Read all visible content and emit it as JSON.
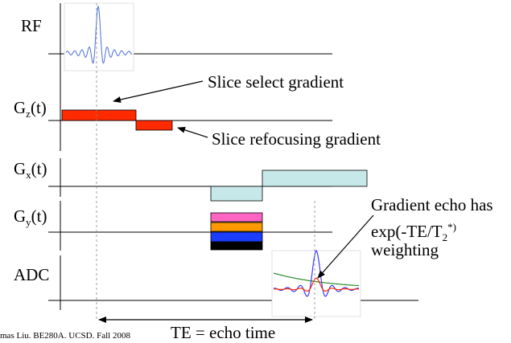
{
  "rows": {
    "rf": {
      "label": "RF"
    },
    "gz": {
      "label_main": "G",
      "label_sub": "z",
      "label_suffix": "(t)"
    },
    "gx": {
      "label_main": "G",
      "label_sub": "x",
      "label_suffix": "(t)"
    },
    "gy": {
      "label_main": "G",
      "label_sub": "y",
      "label_suffix": "(t)"
    },
    "adc": {
      "label": "ADC"
    }
  },
  "annotations": {
    "slice_select": "Slice select gradient",
    "slice_refocus": "Slice refocusing gradient",
    "gradient_echo_line1": "Gradient echo has",
    "gradient_echo_line2_pre": "exp(-TE/T",
    "gradient_echo_line2_sub": "2",
    "gradient_echo_line2_sup": "*)",
    "gradient_echo_line3": "weighting",
    "te": "TE = echo time"
  },
  "footer": "mas Liu. BE280A. UCSD. Fall 2008",
  "colors": {
    "slice_gradient": "#ff2a00",
    "readout_gradient": "#c6e8e8",
    "phase_pink": "#ff66c4",
    "phase_orange": "#ff9900",
    "phase_blue": "#1a3dff",
    "phase_black": "#000000",
    "signal_blue": "#3a3aff",
    "signal_red": "#ff2a00",
    "decay_green": "#2b8a2b"
  }
}
